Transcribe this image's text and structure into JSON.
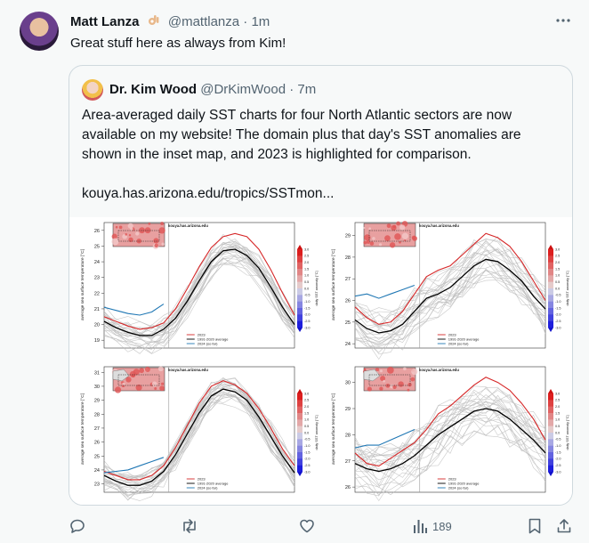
{
  "tweet": {
    "author_name": "Matt Lanza",
    "author_handle": "@mattlanza",
    "time": "1m",
    "text": "Great stuff here as always from Kim!"
  },
  "quoted": {
    "author_name": "Dr. Kim Wood",
    "author_handle": "@DrKimWood",
    "time": "7m",
    "paragraphs": [
      "Area-averaged daily SST charts for four North Atlantic sectors are now",
      "available on my website! The domain plus that day's SST anomalies are",
      "shown in the inset map, and 2023 is highlighted for comparison."
    ],
    "link": "kouya.has.arizona.edu/tropics/SSTmon..."
  },
  "figure": {
    "watermark": "kouya.has.arizona.edu",
    "ylabel": "average sea surface temperature [°C]",
    "colorbar_label": "daily SST anomaly [°C]",
    "legend": [
      "2023",
      "1991-2020 average",
      "2024 (so far)"
    ],
    "colorbar_ticks": [
      "3.0",
      "2.5",
      "2.0",
      "1.5",
      "1.0",
      "0.5",
      "0.0",
      "-0.5",
      "-1.0",
      "-1.5",
      "-2.0",
      "-2.5",
      "-3.0"
    ],
    "colors": {
      "y2023": "#d62728",
      "avg": "#000000",
      "y2024": "#1f77b4",
      "past": "#bbbbbb"
    }
  },
  "chart_data": [
    {
      "type": "line",
      "ylim": [
        18.5,
        26.5
      ],
      "yticks": [
        "26",
        "25",
        "24",
        "23",
        "22",
        "21",
        "20",
        "19"
      ],
      "series": [
        {
          "name": "2023",
          "y": [
            20.5,
            20.2,
            19.9,
            19.7,
            19.8,
            20.1,
            21.0,
            22.3,
            23.7,
            24.9,
            25.6,
            25.8,
            25.6,
            24.8,
            23.5,
            22.0,
            20.6
          ]
        },
        {
          "name": "1991-2020 average",
          "y": [
            20.2,
            19.8,
            19.5,
            19.3,
            19.3,
            19.7,
            20.4,
            21.5,
            22.8,
            24.0,
            24.7,
            24.8,
            24.4,
            23.6,
            22.4,
            21.1,
            20.0
          ]
        },
        {
          "name": "2024 (so far)",
          "y": [
            21.1,
            20.9,
            20.7,
            20.6,
            20.8,
            21.3
          ]
        }
      ]
    },
    {
      "type": "line",
      "ylim": [
        23.8,
        29.6
      ],
      "yticks": [
        "29",
        "28",
        "27",
        "26",
        "25",
        "24"
      ],
      "series": [
        {
          "name": "2023",
          "y": [
            25.7,
            25.2,
            24.9,
            25.0,
            25.5,
            26.3,
            27.1,
            27.4,
            27.6,
            28.1,
            28.6,
            29.1,
            28.9,
            28.5,
            27.8,
            26.9,
            26.0
          ]
        },
        {
          "name": "1991-2020 average",
          "y": [
            25.1,
            24.7,
            24.5,
            24.6,
            24.9,
            25.5,
            26.1,
            26.3,
            26.6,
            27.1,
            27.6,
            27.9,
            27.8,
            27.4,
            26.9,
            26.2,
            25.6
          ]
        },
        {
          "name": "2024 (so far)",
          "y": [
            26.2,
            26.3,
            26.1,
            26.3,
            26.5,
            26.7
          ]
        }
      ]
    },
    {
      "type": "line",
      "ylim": [
        22.4,
        31.4
      ],
      "yticks": [
        "31",
        "30",
        "29",
        "28",
        "27",
        "26",
        "25",
        "24",
        "23"
      ],
      "series": [
        {
          "name": "2023",
          "y": [
            23.9,
            23.6,
            23.3,
            23.3,
            23.6,
            24.3,
            25.6,
            27.2,
            28.8,
            30.0,
            30.4,
            30.1,
            29.5,
            28.4,
            27.0,
            25.5,
            24.3
          ]
        },
        {
          "name": "1991-2020 average",
          "y": [
            23.6,
            23.2,
            22.9,
            22.9,
            23.2,
            23.9,
            25.1,
            26.6,
            28.1,
            29.3,
            29.8,
            29.6,
            29.0,
            27.8,
            26.4,
            25.0,
            23.8
          ]
        },
        {
          "name": "2024 (so far)",
          "y": [
            23.8,
            23.9,
            24.0,
            24.3,
            24.6,
            24.9
          ]
        }
      ]
    },
    {
      "type": "line",
      "ylim": [
        25.8,
        30.6
      ],
      "yticks": [
        "30",
        "29",
        "28",
        "27",
        "26"
      ],
      "series": [
        {
          "name": "2023",
          "y": [
            27.3,
            26.9,
            26.8,
            27.1,
            27.4,
            27.7,
            28.2,
            28.8,
            29.1,
            29.5,
            29.9,
            30.2,
            30.0,
            29.7,
            29.2,
            28.6,
            27.8
          ]
        },
        {
          "name": "1991-2020 average",
          "y": [
            26.9,
            26.7,
            26.6,
            26.7,
            26.9,
            27.2,
            27.6,
            28.0,
            28.3,
            28.6,
            28.9,
            29.0,
            28.9,
            28.6,
            28.2,
            27.8,
            27.3
          ]
        },
        {
          "name": "2024 (so far)",
          "y": [
            27.5,
            27.6,
            27.6,
            27.8,
            28.0,
            28.2
          ]
        }
      ]
    }
  ]
}
